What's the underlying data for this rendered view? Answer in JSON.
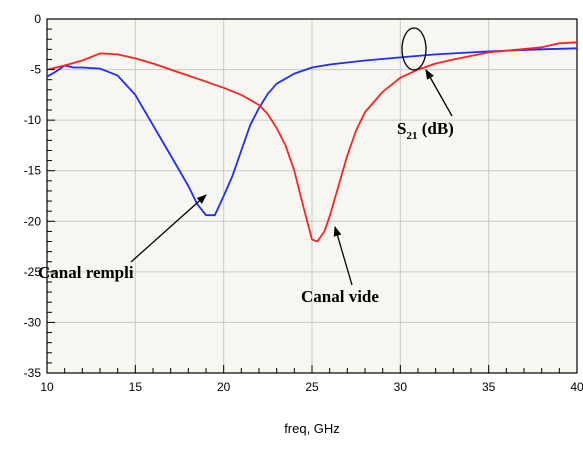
{
  "chart_data": {
    "type": "line",
    "xlabel": "freq, GHz",
    "ylabel": "",
    "xlim": [
      10,
      40
    ],
    "ylim": [
      -35,
      0
    ],
    "xticks": [
      10,
      15,
      20,
      25,
      30,
      35,
      40
    ],
    "yticks": [
      0,
      -5,
      -10,
      -15,
      -20,
      -25,
      -30,
      -35
    ],
    "grid": true,
    "series": [
      {
        "color": "#1f2bff",
        "x": [
          10,
          10.5,
          11,
          11.5,
          12,
          13,
          14,
          15,
          16,
          17,
          18,
          18.5,
          19,
          19.5,
          20,
          20.5,
          21,
          21.5,
          22,
          22.5,
          23,
          24,
          25,
          26,
          27,
          28,
          30,
          32,
          35,
          38,
          40
        ],
        "y": [
          -5.7,
          -5.2,
          -4.6,
          -4.8,
          -4.8,
          -4.9,
          -5.6,
          -7.5,
          -10.5,
          -13.5,
          -16.5,
          -18.3,
          -19.4,
          -19.4,
          -17.5,
          -15.5,
          -13,
          -10.5,
          -8.8,
          -7.4,
          -6.4,
          -5.4,
          -4.8,
          -4.5,
          -4.3,
          -4.1,
          -3.8,
          -3.5,
          -3.2,
          -3,
          -2.9
        ]
      },
      {
        "color": "#ff2222",
        "x": [
          10,
          11,
          12,
          13,
          14,
          15,
          16,
          17,
          18,
          19,
          20,
          21,
          22,
          22.5,
          23,
          23.5,
          24,
          24.5,
          25,
          25.3,
          25.7,
          26,
          26.5,
          27,
          27.5,
          28,
          29,
          30,
          31,
          32,
          33,
          35,
          38,
          39,
          40
        ],
        "y": [
          -5,
          -4.6,
          -4.1,
          -3.4,
          -3.5,
          -3.9,
          -4.4,
          -5,
          -5.6,
          -6.2,
          -6.8,
          -7.5,
          -8.5,
          -9.4,
          -10.8,
          -12.5,
          -15,
          -18.5,
          -21.8,
          -22,
          -21,
          -19.5,
          -16.5,
          -13.5,
          -11,
          -9.2,
          -7.2,
          -5.8,
          -5,
          -4.4,
          -4,
          -3.3,
          -2.8,
          -2.4,
          -2.3
        ]
      }
    ],
    "annotations": [
      {
        "text": "S",
        "sub": "21",
        "suffix": " (dB)",
        "target_x": 30.6,
        "target_y": -3.8
      },
      {
        "text": "Canal rempli",
        "target_x": 19.4,
        "target_y": -17.5
      },
      {
        "text": "Canal vide",
        "target_x": 25.7,
        "target_y": -20.2
      }
    ]
  }
}
